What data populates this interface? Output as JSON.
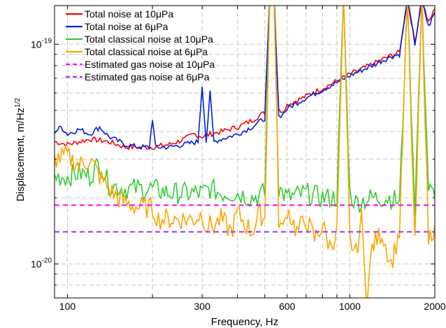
{
  "chart_data": {
    "type": "line",
    "xlabel": "Frequency, Hz",
    "ylabel": "Displacement, m/Hz",
    "ylabel_exponent": "1/2",
    "xscale": "log",
    "yscale": "log",
    "xlim": [
      90,
      2000
    ],
    "ylim": [
      7e-21,
      1.5e-19
    ],
    "grid": true,
    "legend_position": "top-left",
    "x_ticks": [
      {
        "value": 100,
        "label": "100"
      },
      {
        "value": 300,
        "label": "300"
      },
      {
        "value": 600,
        "label": "600"
      },
      {
        "value": 1000,
        "label": "1000"
      },
      {
        "value": 2000,
        "label": "2000"
      }
    ],
    "y_ticks": [
      {
        "value": 1e-20,
        "base": "10",
        "exponent": "-20"
      },
      {
        "value": 1e-19,
        "base": "10",
        "exponent": "-19"
      }
    ],
    "series": [
      {
        "name": "Total noise at 10μPa",
        "color": "#ff0000",
        "style": "solid",
        "x": [
          90,
          100,
          110,
          120,
          140,
          160,
          180,
          200,
          230,
          260,
          280,
          300,
          320,
          350,
          400,
          450,
          500,
          520,
          540,
          560,
          580,
          600,
          700,
          800,
          900,
          1000,
          1200,
          1400,
          1500,
          1600,
          1700,
          1800,
          1900,
          2000
        ],
        "y": [
          3.6e-20,
          3.5e-20,
          3.6e-20,
          3.7e-20,
          3.6e-20,
          3.4e-20,
          3.4e-20,
          3.4e-20,
          3.5e-20,
          3.7e-20,
          3.9e-20,
          3.8e-20,
          3.9e-20,
          4e-20,
          4.2e-20,
          4.5e-20,
          4.9e-20,
          1.6e-19,
          1.6e-19,
          5e-20,
          5e-20,
          5.3e-20,
          5.8e-20,
          6.3e-20,
          6.8e-20,
          7.3e-20,
          8.1e-20,
          8.9e-20,
          9.2e-20,
          1.6e-19,
          1.02e-19,
          1.6e-19,
          1.25e-19,
          1.45e-19
        ]
      },
      {
        "name": "Total noise at 6μPa",
        "color": "#0020e0",
        "style": "solid",
        "x": [
          90,
          95,
          100,
          110,
          120,
          130,
          140,
          160,
          180,
          195,
          200,
          205,
          230,
          260,
          290,
          300,
          310,
          320,
          330,
          350,
          400,
          450,
          500,
          520,
          540,
          560,
          580,
          600,
          700,
          800,
          900,
          1000,
          1200,
          1400,
          1500,
          1600,
          1700,
          1800,
          1900,
          2000
        ],
        "y": [
          4e-20,
          4.2e-20,
          3.9e-20,
          4.1e-20,
          3.9e-20,
          4.2e-20,
          3.8e-20,
          3.5e-20,
          3.4e-20,
          3.4e-20,
          4.6e-20,
          3.4e-20,
          3.4e-20,
          3.5e-20,
          3.6e-20,
          6.5e-20,
          3.6e-20,
          6e-20,
          3.6e-20,
          3.7e-20,
          3.9e-20,
          4.2e-20,
          4.6e-20,
          1.6e-19,
          1.6e-19,
          4.7e-20,
          4.8e-20,
          5.1e-20,
          5.7e-20,
          6.2e-20,
          6.7e-20,
          7.2e-20,
          8e-20,
          8.8e-20,
          9e-20,
          1.6e-19,
          1e-19,
          1.6e-19,
          1.2e-19,
          1.4e-19
        ]
      },
      {
        "name": "Total classical noise at 10μPa",
        "color": "#33cc33",
        "style": "solid",
        "x": [
          90,
          100,
          110,
          120,
          130,
          140,
          160,
          180,
          200,
          230,
          260,
          280,
          300,
          320,
          350,
          400,
          450,
          500,
          520,
          540,
          560,
          600,
          700,
          800,
          900,
          950,
          1000,
          1050,
          1200,
          1400,
          1500,
          1600,
          1700,
          1800,
          1900,
          2000
        ],
        "y": [
          2.5e-20,
          2.5e-20,
          2.6e-20,
          2.5e-20,
          2.9e-20,
          2.3e-20,
          2.2e-20,
          2.2e-20,
          2.2e-20,
          2.1e-20,
          2.1e-20,
          2.1e-20,
          2.1e-20,
          2.2e-20,
          2.1e-20,
          2.1e-20,
          2e-20,
          2.1e-20,
          1.6e-19,
          1.6e-19,
          2.2e-20,
          2e-20,
          2.1e-20,
          2e-20,
          2e-20,
          1.6e-19,
          2.1e-20,
          1.9e-20,
          2e-20,
          2e-20,
          1.9e-20,
          1.6e-19,
          1.8e-20,
          1.6e-19,
          2.2e-20,
          2e-20
        ]
      },
      {
        "name": "Total classical noise at 6μPa",
        "color": "#ffa500",
        "style": "solid",
        "x": [
          90,
          100,
          110,
          120,
          130,
          140,
          150,
          160,
          180,
          200,
          210,
          230,
          260,
          280,
          300,
          310,
          330,
          350,
          380,
          400,
          430,
          450,
          480,
          500,
          520,
          540,
          560,
          580,
          600,
          650,
          700,
          750,
          800,
          850,
          900,
          950,
          1000,
          1050,
          1100,
          1150,
          1200,
          1300,
          1400,
          1500,
          1600,
          1700,
          1800,
          1900,
          2000
        ],
        "y": [
          3e-20,
          3.1e-20,
          2.8e-20,
          3e-20,
          2.5e-20,
          2.2e-20,
          2e-20,
          1.9e-20,
          1.8e-20,
          1.8e-20,
          1.6e-20,
          1.6e-20,
          1.6e-20,
          1.6e-20,
          1.7e-20,
          1.5e-20,
          1.5e-20,
          1.6e-20,
          1.4e-20,
          1.7e-20,
          1.5e-20,
          1.4e-20,
          1.7e-20,
          1.6e-20,
          1.6e-19,
          1.6e-19,
          1.6e-20,
          1.4e-20,
          1.8e-20,
          1.4e-20,
          1.6e-20,
          1.3e-20,
          1.5e-20,
          1.2e-20,
          1.4e-20,
          1.6e-19,
          1.3e-20,
          1.1e-20,
          1.6e-20,
          7e-21,
          1.2e-20,
          1.4e-20,
          1e-20,
          1.4e-20,
          1.6e-19,
          1.2e-20,
          1.6e-19,
          1.3e-20,
          1.5e-20
        ]
      },
      {
        "name": "Estimated gas noise at 10μPa",
        "color": "#ff00ff",
        "style": "dashed",
        "x": [
          90,
          2000
        ],
        "y": [
          1.85e-20,
          1.85e-20
        ]
      },
      {
        "name": "Estimated gas noise at 6μPa",
        "color": "#9933ff",
        "style": "dashed",
        "x": [
          90,
          2000
        ],
        "y": [
          1.4e-20,
          1.4e-20
        ]
      }
    ]
  }
}
